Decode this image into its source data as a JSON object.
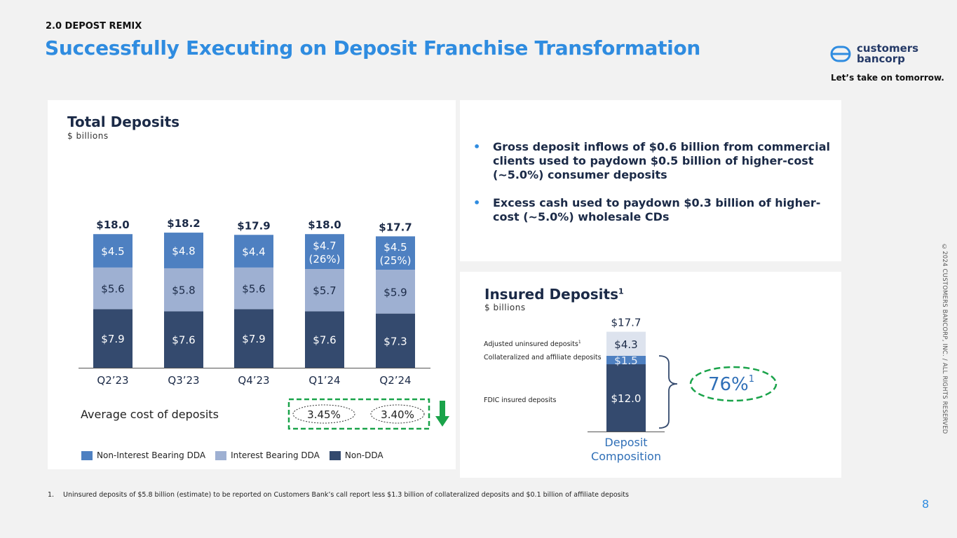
{
  "header": {
    "section": "2.0 DEPOST REMIX",
    "title": "Successfully Executing on Deposit Franchise Transformation",
    "logo_line1": "customers",
    "logo_line2": "bancorp",
    "tagline": "Let’s take on tomorrow."
  },
  "copyright": "©2024 CUSTOMERS BANCORP, INC. / ALL RIGHTS RESERVED",
  "colors": {
    "title": "#2f8ce0",
    "nib": "#4e80c1",
    "ib": "#9eb0d2",
    "nondda": "#344a6e",
    "green": "#1aa34a"
  },
  "left_panel": {
    "title": "Total Deposits",
    "subtitle": "$ billions",
    "avg_cost_label": "Average cost of deposits",
    "avg_cost_values": [
      "3.45%",
      "3.40%"
    ]
  },
  "bullets": [
    "Gross deposit inflows of $0.6 billion from commercial clients used to paydown $0.5 billion of higher-cost (~5.0%) consumer deposits",
    "Excess cash used to paydown $0.3 billion of higher-cost (~5.0%) wholesale CDs"
  ],
  "right_panel": {
    "title": "Insured Deposits",
    "title_sup": "1",
    "subtitle": "$ billions",
    "label_uninsured": "Adjusted uninsured deposits",
    "label_uninsured_sup": "1",
    "label_collateral": "Collateralized and affiliate deposits",
    "label_fdic": "FDIC insured deposits",
    "insured_pct": "76%",
    "insured_pct_sup": "1"
  },
  "footnote": {
    "num": "1.",
    "text": "Uninsured deposits of $5.8 billion (estimate) to be reported on Customers Bank’s call report less $1.3 billion of collateralized deposits and $0.1 billion of affiliate deposits"
  },
  "page_number": "8",
  "chart_data": [
    {
      "type": "bar",
      "stacked": true,
      "title": "Total Deposits",
      "subtitle": "$ billions",
      "categories": [
        "Q2’23",
        "Q3’23",
        "Q4’23",
        "Q1’24",
        "Q2’24"
      ],
      "totals": [
        "$18.0",
        "$18.2",
        "$17.9",
        "$18.0",
        "$17.7"
      ],
      "series": [
        {
          "name": "Non-DDA",
          "values": [
            7.9,
            7.6,
            7.9,
            7.6,
            7.3
          ],
          "labels": [
            "$7.9",
            "$7.6",
            "$7.9",
            "$7.6",
            "$7.3"
          ],
          "color": "#344a6e"
        },
        {
          "name": "Interest Bearing DDA",
          "values": [
            5.6,
            5.8,
            5.6,
            5.7,
            5.9
          ],
          "labels": [
            "$5.6",
            "$5.8",
            "$5.6",
            "$5.7",
            "$5.9"
          ],
          "color": "#9eb0d2"
        },
        {
          "name": "Non-Interest Bearing DDA",
          "values": [
            4.5,
            4.8,
            4.4,
            4.7,
            4.5
          ],
          "labels": [
            "$4.5",
            "$4.8",
            "$4.4",
            "$4.7",
            "$4.5"
          ],
          "sublabels": [
            "",
            "",
            "",
            "(26%)",
            "(25%)"
          ],
          "color": "#4e80c1"
        }
      ],
      "legend": [
        "Non-Interest Bearing DDA",
        "Interest Bearing DDA",
        "Non-DDA"
      ],
      "legend_position": "bottom"
    },
    {
      "type": "bar",
      "stacked": true,
      "title": "Insured Deposits",
      "categories": [
        "Deposit Composition"
      ],
      "category_label": [
        "Deposit",
        "Composition"
      ],
      "total": "$17.7",
      "series": [
        {
          "name": "FDIC insured deposits",
          "values": [
            12.0
          ],
          "label": "$12.0",
          "color": "#344a6e"
        },
        {
          "name": "Collateralized and affiliate deposits",
          "values": [
            1.5
          ],
          "label": "$1.5",
          "color": "#4e80c1"
        },
        {
          "name": "Adjusted uninsured deposits",
          "values": [
            4.3
          ],
          "label": "$4.3",
          "color": "#dde3ee"
        }
      ]
    }
  ]
}
